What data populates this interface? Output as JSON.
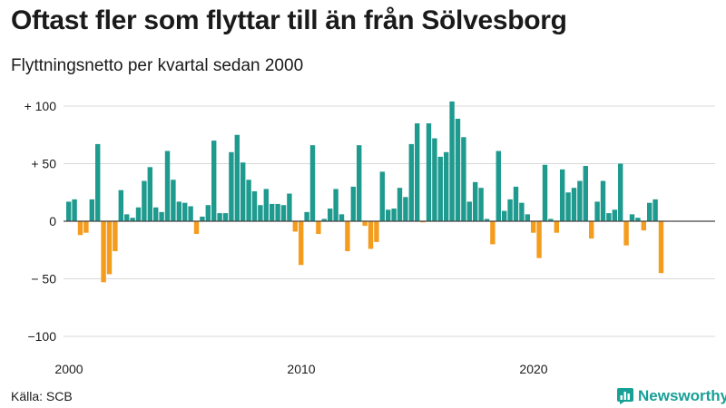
{
  "header": {
    "title": "Oftast fler som flyttar till än från Sölvesborg",
    "subtitle": "Flyttningsnetto per kvartal sedan 2000"
  },
  "footer": {
    "source": "Källa: SCB",
    "brand": "Newsworthy"
  },
  "colors": {
    "positive": "#1f9a8e",
    "negative": "#f39c1d",
    "brand": "#17a096"
  },
  "chart_data": {
    "type": "bar",
    "title": "Oftast fler som flyttar till än från Sölvesborg",
    "subtitle": "Flyttningsnetto per kvartal sedan 2000",
    "xlabel": "",
    "ylabel": "",
    "ylim": [
      -100,
      100
    ],
    "grid": true,
    "x_start_year": 2000,
    "y_ticks": [
      100,
      50,
      0,
      -50,
      -100
    ],
    "y_tick_labels": [
      "+ 100",
      "+  50",
      "0",
      "− 50",
      "−100"
    ],
    "x_ticks": [
      "2000",
      "2010",
      "2020"
    ],
    "quarters_per_year": 4,
    "values": [
      17,
      19,
      -12,
      -10,
      19,
      67,
      -53,
      -46,
      -26,
      27,
      6,
      3,
      12,
      35,
      47,
      12,
      8,
      61,
      36,
      17,
      16,
      13,
      -11,
      4,
      14,
      70,
      7,
      7,
      60,
      75,
      51,
      36,
      26,
      14,
      28,
      15,
      15,
      14,
      24,
      -9,
      -38,
      8,
      66,
      -11,
      2,
      11,
      28,
      6,
      -26,
      30,
      66,
      -4,
      -24,
      -18,
      43,
      10,
      11,
      29,
      21,
      67,
      85,
      -1,
      85,
      72,
      56,
      60,
      104,
      89,
      73,
      17,
      34,
      29,
      2,
      -20,
      61,
      9,
      19,
      30,
      16,
      6,
      -10,
      -32,
      49,
      2,
      -10,
      45,
      25,
      29,
      35,
      48,
      -15,
      17,
      35,
      7,
      10,
      50,
      -21,
      6,
      3,
      -8,
      16,
      19,
      -45
    ]
  }
}
